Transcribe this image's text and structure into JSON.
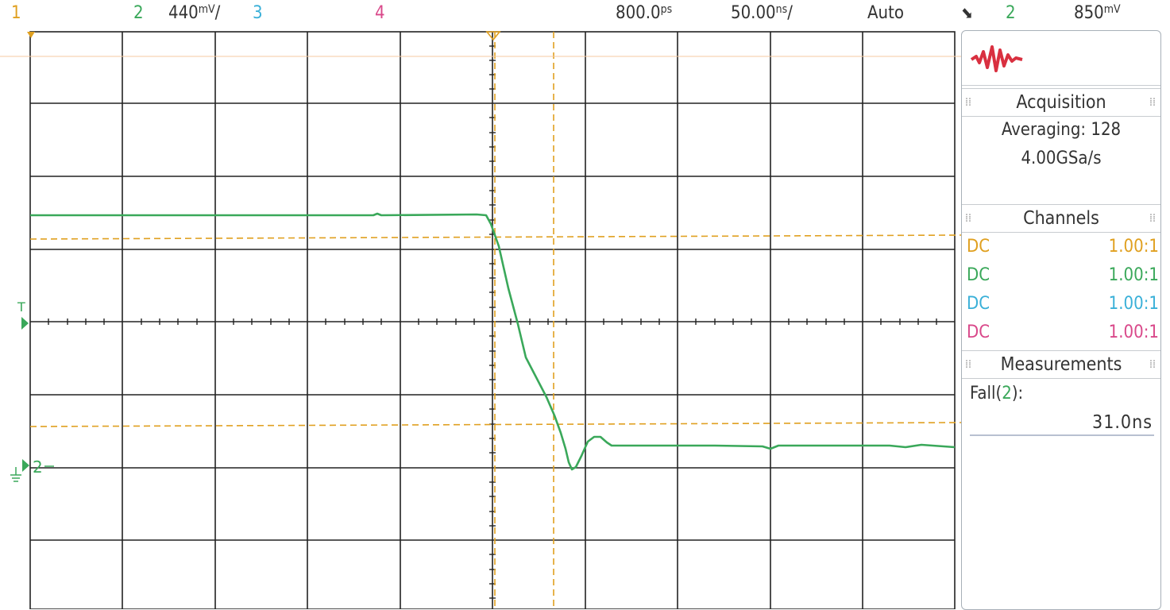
{
  "topbar": {
    "ch1": "1",
    "ch2": "2",
    "ch2_scale": "440",
    "ch3": "3",
    "ch4": "4",
    "delay": "800.0",
    "timebase": "50.00",
    "mode": "Auto",
    "trig_icon": "⬊",
    "trig_src": "2",
    "trig_level": "850"
  },
  "scope": {
    "trigger_marker": "T",
    "ground_marker": "2"
  },
  "trace": {
    "color": "#3aa85a",
    "grid_color": "#222222",
    "cursor_color": "#e0a020"
  },
  "panel": {
    "acquisition_title": "Acquisition",
    "averaging": "Averaging: 128",
    "sample_rate": "4.00GSa/s",
    "channels_title": "Channels",
    "channels": [
      {
        "coupling": "DC",
        "ratio": "1.00:1",
        "color": "#e0a020"
      },
      {
        "coupling": "DC",
        "ratio": "1.00:1",
        "color": "#3aa85a"
      },
      {
        "coupling": "DC",
        "ratio": "1.00:1",
        "color": "#3ab0d8"
      },
      {
        "coupling": "DC",
        "ratio": "1.00:1",
        "color": "#d9488a"
      }
    ],
    "measurements_title": "Measurements",
    "measurement_name": "Fall(",
    "measurement_channel": "2",
    "measurement_close": "):",
    "measurement_value": "31.0ns"
  }
}
